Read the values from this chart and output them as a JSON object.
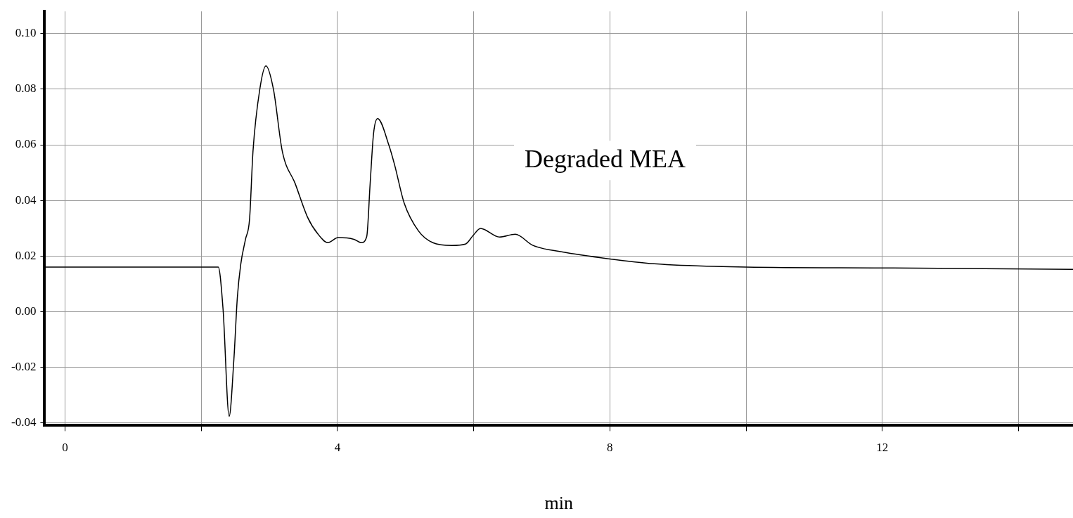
{
  "chart_data": {
    "type": "line",
    "xlabel": "min",
    "annotations": [
      "Degraded MEA"
    ],
    "xlim": [
      -0.3,
      14.8
    ],
    "ylim": [
      -0.041,
      0.108
    ],
    "xticks": [
      0,
      {
        "value": 2,
        "label": null
      },
      4,
      {
        "value": 6,
        "label": null
      },
      8,
      {
        "value": 10,
        "label": null
      },
      12,
      {
        "value": 14,
        "label": null
      }
    ],
    "yticks": [
      {
        "value": -0.04,
        "label": "-0.04"
      },
      {
        "value": -0.02,
        "label": "-0.02"
      },
      {
        "value": 0,
        "label": "0.00"
      },
      {
        "value": 0.02,
        "label": "0.02"
      },
      {
        "value": 0.04,
        "label": "0.04"
      },
      {
        "value": 0.06,
        "label": "0.06"
      },
      {
        "value": 0.08,
        "label": "0.08"
      },
      {
        "value": 0.1,
        "label": "0.10"
      }
    ],
    "grid": true,
    "legend": false,
    "marker": "none",
    "line_style": "solid",
    "series": [
      {
        "color": "#000000",
        "x": [
          -0.3,
          1.0,
          2.1,
          2.25,
          2.32,
          2.41,
          2.48,
          2.53,
          2.58,
          2.65,
          2.71,
          2.76,
          2.86,
          2.95,
          3.06,
          3.19,
          3.38,
          3.56,
          3.71,
          3.86,
          4.01,
          4.24,
          4.35,
          4.43,
          4.48,
          4.53,
          4.59,
          4.76,
          4.84,
          4.98,
          5.19,
          5.4,
          5.68,
          5.88,
          5.99,
          6.1,
          6.38,
          6.61,
          6.87,
          7.29,
          7.98,
          8.65,
          10,
          12,
          14.8
        ],
        "values": [
          0.016,
          0.016,
          0.016,
          0.016,
          0.001,
          -0.0377,
          -0.017,
          0.005,
          0.017,
          0.026,
          0.0334,
          0.0577,
          0.08,
          0.0884,
          0.08,
          0.0577,
          0.046,
          0.034,
          0.028,
          0.0248,
          0.0266,
          0.026,
          0.0248,
          0.027,
          0.046,
          0.064,
          0.0694,
          0.0595,
          0.0527,
          0.039,
          0.029,
          0.0248,
          0.0238,
          0.0243,
          0.0273,
          0.0299,
          0.0268,
          0.0278,
          0.0238,
          0.0215,
          0.019,
          0.0172,
          0.016,
          0.0157,
          0.0152
        ]
      }
    ]
  }
}
